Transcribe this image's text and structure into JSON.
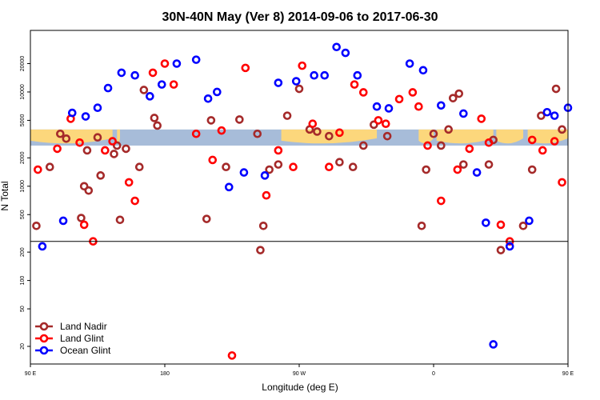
{
  "chart_data": {
    "type": "scatter",
    "title": "30N-40N May (Ver 8)   2014-09-06 to 2017-06-30",
    "xlabel": "Longitude (deg E)",
    "ylabel": "N Total",
    "x_scale": "linear",
    "y_scale": "log",
    "xlim": [
      90,
      450
    ],
    "ylim": [
      13,
      45000
    ],
    "x_ticks": [
      {
        "value": 90,
        "label": "90 E"
      },
      {
        "value": 180,
        "label": "180"
      },
      {
        "value": 270,
        "label": "90 W"
      },
      {
        "value": 360,
        "label": "0"
      },
      {
        "value": 450,
        "label": "90 E"
      },
      {
        "value": 540,
        "label": "180"
      }
    ],
    "y_ticks": [
      {
        "value": 20,
        "label": "20"
      },
      {
        "value": 50,
        "label": "50"
      },
      {
        "value": 100,
        "label": "100"
      },
      {
        "value": 200,
        "label": "200"
      },
      {
        "value": 500,
        "label": "500"
      },
      {
        "value": 1000,
        "label": "1000"
      },
      {
        "value": 2000,
        "label": "2000"
      },
      {
        "value": 5000,
        "label": "5000"
      },
      {
        "value": 10000,
        "label": "10000"
      },
      {
        "value": 20000,
        "label": "20000"
      }
    ],
    "reference_line_y": 260,
    "map_band_y": [
      2700,
      4000
    ],
    "colors": {
      "ocean": "#a7bcd9",
      "land": "#fcd77c"
    },
    "legend_position": "bottom-left",
    "series": [
      {
        "name": "Land Nadir",
        "color": "#a52a2a",
        "x": [
          94,
          103,
          110,
          114,
          124,
          126,
          128,
          129,
          135,
          137,
          146,
          148,
          150,
          154,
          163,
          166,
          173,
          175,
          208,
          211,
          221,
          230,
          242,
          244,
          246,
          250,
          262,
          270,
          277,
          282,
          290,
          297,
          306,
          313,
          320,
          329,
          352,
          355,
          360,
          365,
          370,
          373,
          377,
          380,
          397,
          400,
          405,
          420,
          426,
          432,
          442,
          446,
          451
        ],
        "y": [
          380,
          1600,
          3600,
          3200,
          460,
          1000,
          2400,
          900,
          3300,
          1300,
          2200,
          2700,
          440,
          2500,
          1600,
          10500,
          5300,
          4400,
          450,
          5000,
          1600,
          5100,
          3600,
          210,
          380,
          1500,
          5600,
          10800,
          4000,
          3800,
          3400,
          1800,
          1600,
          2700,
          4500,
          3400,
          380,
          1500,
          3600,
          2700,
          4000,
          8600,
          9600,
          1700,
          1700,
          3100,
          210,
          380,
          1500,
          5600,
          10800,
          4000,
          460
        ]
      },
      {
        "name": "Land Glint",
        "color": "#ff0000",
        "x": [
          95,
          108,
          117,
          123,
          126,
          132,
          140,
          145,
          156,
          160,
          172,
          180,
          186,
          201,
          212,
          218,
          234,
          248,
          256,
          266,
          272,
          279,
          290,
          297,
          307,
          313,
          323,
          328,
          337,
          346,
          350,
          356,
          365,
          376,
          384,
          392,
          397,
          405,
          411,
          426,
          433,
          441,
          446,
          451
        ],
        "y": [
          1500,
          2500,
          5200,
          2900,
          390,
          260,
          2400,
          3000,
          1100,
          700,
          16000,
          20000,
          12000,
          3600,
          1900,
          3900,
          18000,
          800,
          2400,
          1600,
          19000,
          4600,
          1600,
          3700,
          12000,
          9900,
          5000,
          4600,
          8400,
          9900,
          7000,
          2700,
          700,
          1500,
          2500,
          5200,
          2900,
          390,
          260,
          3100,
          2400,
          3000,
          1100,
          700
        ]
      },
      {
        "name": "Ocean Glint",
        "color": "#0000ff",
        "x": [
          98,
          112,
          118,
          127,
          135,
          142,
          151,
          160,
          170,
          178,
          188,
          201,
          209,
          215,
          223,
          233,
          247,
          256,
          268,
          280,
          287,
          295,
          301,
          309,
          322,
          330,
          344,
          353,
          365,
          380,
          389,
          395,
          400,
          411,
          424,
          436,
          441,
          450
        ],
        "y": [
          230,
          430,
          6000,
          5500,
          6800,
          11000,
          16000,
          15000,
          9000,
          12000,
          20000,
          22000,
          8500,
          10000,
          980,
          1400,
          1300,
          12500,
          13000,
          15000,
          15000,
          30000,
          26000,
          15000,
          7000,
          6700,
          20000,
          17000,
          7200,
          5900,
          1400,
          410,
          21,
          230,
          430,
          6100,
          5600,
          6800
        ]
      }
    ],
    "extra_points": [
      {
        "series": "Land Glint",
        "x": 225,
        "y": 16
      },
      {
        "series": "Land Nadir",
        "x": 256,
        "y": 1700
      }
    ]
  }
}
